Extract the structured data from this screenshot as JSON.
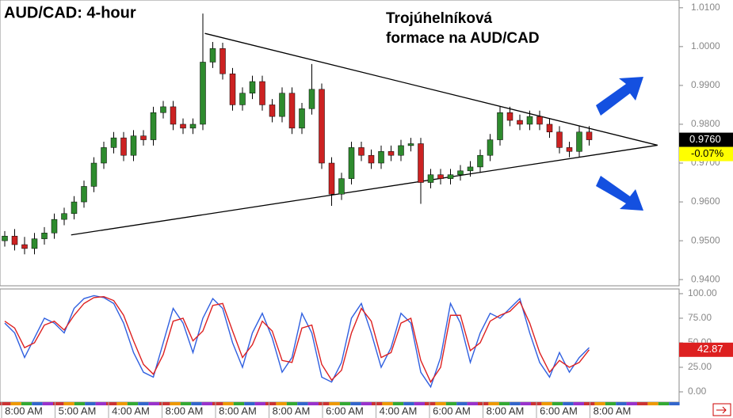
{
  "chart_data": [
    {
      "type": "candlestick",
      "title": "AUD/CAD: 4-hour",
      "annotation": [
        "Trojúhelníková",
        "formace na AUD/CAD"
      ],
      "open": [
        0.95,
        0.9512,
        0.949,
        0.948,
        0.9505,
        0.952,
        0.9555,
        0.957,
        0.96,
        0.964,
        0.97,
        0.974,
        0.9765,
        0.972,
        0.977,
        0.976,
        0.983,
        0.9845,
        0.98,
        0.979,
        0.98,
        0.996,
        0.9995,
        0.993,
        0.985,
        0.988,
        0.991,
        0.985,
        0.982,
        0.988,
        0.979,
        0.984,
        0.989,
        0.97,
        0.962,
        0.966,
        0.974,
        0.972,
        0.97,
        0.973,
        0.972,
        0.9745,
        0.975,
        0.965,
        0.967,
        0.966,
        0.967,
        0.968,
        0.969,
        0.972,
        0.976,
        0.983,
        0.981,
        0.98,
        0.982,
        0.98,
        0.978,
        0.974,
        0.973,
        0.978
      ],
      "high": [
        0.9525,
        0.953,
        0.951,
        0.952,
        0.9535,
        0.957,
        0.9585,
        0.9615,
        0.9655,
        0.9715,
        0.9755,
        0.978,
        0.978,
        0.9785,
        0.9785,
        0.9845,
        0.986,
        0.986,
        0.9815,
        0.9815,
        1.0085,
        1.0012,
        1.001,
        0.9945,
        0.9895,
        0.9925,
        0.9925,
        0.9865,
        0.9895,
        0.9895,
        0.9855,
        0.9955,
        0.9905,
        0.9715,
        0.9675,
        0.9755,
        0.9755,
        0.9735,
        0.9745,
        0.9745,
        0.976,
        0.9765,
        0.9765,
        0.9685,
        0.9685,
        0.9685,
        0.9695,
        0.9705,
        0.9735,
        0.9775,
        0.9845,
        0.9845,
        0.9825,
        0.9835,
        0.9835,
        0.9815,
        0.9795,
        0.9755,
        0.9795,
        0.9795
      ],
      "low": [
        0.9485,
        0.9475,
        0.9465,
        0.9465,
        0.949,
        0.9505,
        0.954,
        0.9555,
        0.9585,
        0.9625,
        0.9685,
        0.9725,
        0.9705,
        0.9705,
        0.9745,
        0.9745,
        0.9815,
        0.9785,
        0.9775,
        0.9775,
        0.9785,
        0.9945,
        0.9915,
        0.9835,
        0.9835,
        0.9865,
        0.9835,
        0.9805,
        0.9805,
        0.9775,
        0.9775,
        0.9825,
        0.9685,
        0.959,
        0.9605,
        0.9645,
        0.9705,
        0.9685,
        0.9685,
        0.9705,
        0.9705,
        0.973,
        0.9595,
        0.9635,
        0.9645,
        0.9645,
        0.9655,
        0.9665,
        0.9675,
        0.9705,
        0.9745,
        0.9795,
        0.9785,
        0.9785,
        0.9785,
        0.9765,
        0.9725,
        0.9715,
        0.9715,
        0.9745
      ],
      "close": [
        0.9512,
        0.949,
        0.948,
        0.9505,
        0.952,
        0.9555,
        0.957,
        0.96,
        0.964,
        0.97,
        0.974,
        0.9765,
        0.972,
        0.977,
        0.976,
        0.983,
        0.9845,
        0.98,
        0.979,
        0.98,
        0.996,
        0.9995,
        0.993,
        0.985,
        0.988,
        0.991,
        0.985,
        0.982,
        0.988,
        0.979,
        0.984,
        0.989,
        0.97,
        0.962,
        0.966,
        0.974,
        0.972,
        0.97,
        0.973,
        0.972,
        0.9745,
        0.975,
        0.965,
        0.967,
        0.966,
        0.967,
        0.968,
        0.969,
        0.972,
        0.976,
        0.983,
        0.981,
        0.98,
        0.982,
        0.98,
        0.978,
        0.974,
        0.973,
        0.978,
        0.976
      ],
      "up_color": "#2e8b2e",
      "down_color": "#cc2222",
      "ylim": [
        0.9384,
        1.012
      ],
      "yticks": [
        {
          "value": 1.01,
          "label": "1.0100"
        },
        {
          "value": 1.0,
          "label": "1.0000"
        },
        {
          "value": 0.99,
          "label": "0.9900"
        },
        {
          "value": 0.98,
          "label": "0.9800"
        },
        {
          "value": 0.97,
          "label": "0.9700"
        },
        {
          "value": 0.96,
          "label": "0.9600"
        },
        {
          "value": 0.95,
          "label": "0.9500"
        },
        {
          "value": 0.94,
          "label": "0.9400"
        }
      ],
      "trendlines": [
        {
          "x": [
            20.2,
            65.9
          ],
          "y": [
            1.0034,
            0.9746
          ]
        },
        {
          "x": [
            6.7,
            65.9
          ],
          "y": [
            0.9515,
            0.9746
          ]
        }
      ],
      "last_price": {
        "value": 0.976,
        "label": "0.9760"
      },
      "change": {
        "value": -0.07,
        "label": "-0.07%"
      }
    },
    {
      "type": "line",
      "series": [
        {
          "color": "#3060e0",
          "values": [
            70,
            60,
            35,
            55,
            75,
            70,
            60,
            85,
            95,
            98,
            96,
            90,
            70,
            40,
            20,
            15,
            50,
            85,
            70,
            40,
            75,
            95,
            85,
            50,
            25,
            60,
            80,
            55,
            20,
            35,
            80,
            60,
            15,
            10,
            30,
            75,
            90,
            60,
            25,
            45,
            80,
            70,
            20,
            5,
            35,
            90,
            70,
            30,
            60,
            80,
            75,
            85,
            95,
            60,
            30,
            15,
            40,
            20,
            35,
            45
          ]
        },
        {
          "color": "#dd2020",
          "values": [
            72,
            65,
            45,
            50,
            68,
            72,
            63,
            78,
            90,
            96,
            97,
            93,
            78,
            52,
            28,
            18,
            38,
            72,
            75,
            52,
            62,
            88,
            90,
            62,
            35,
            48,
            72,
            62,
            32,
            30,
            65,
            68,
            28,
            12,
            22,
            60,
            85,
            72,
            35,
            40,
            70,
            75,
            32,
            10,
            25,
            78,
            78,
            42,
            50,
            72,
            78,
            82,
            92,
            70,
            40,
            20,
            32,
            25,
            30,
            42.87
          ]
        }
      ],
      "ylim": [
        -10.5,
        104.8
      ],
      "yticks": [
        {
          "value": 100,
          "label": "100.00"
        },
        {
          "value": 75,
          "label": "75.00"
        },
        {
          "value": 50,
          "label": "50.00"
        },
        {
          "value": 25,
          "label": "25.00"
        },
        {
          "value": 0,
          "label": "0.00"
        }
      ],
      "time_labels": [
        "8:00 AM",
        "5:00 AM",
        "4:00 AM",
        "8:00 AM",
        "8:00 AM",
        "8:00 AM",
        "6:00 AM",
        "4:00 AM",
        "6:00 AM",
        "8:00 AM",
        "6:00 AM",
        "8:00 AM"
      ]
    }
  ]
}
